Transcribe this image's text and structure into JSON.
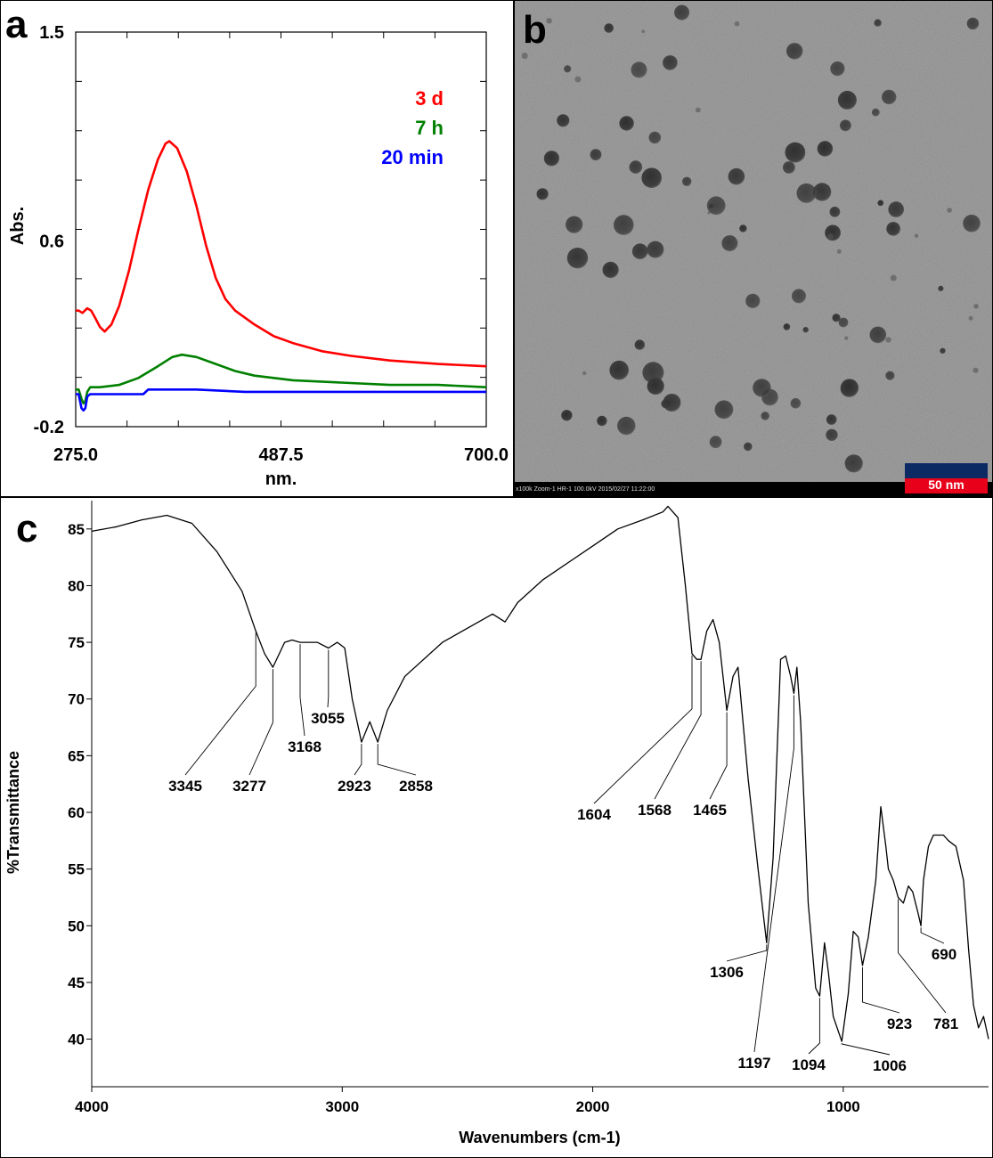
{
  "panels": {
    "a": {
      "letter": "a"
    },
    "b": {
      "letter": "b",
      "scale_bar": "50 nm",
      "info_text": "x100k Zoom-1 HR-1 100.0kV 2015/02/27 11:22:00"
    },
    "c": {
      "letter": "c"
    }
  },
  "chart_data": [
    {
      "panel": "a",
      "type": "line",
      "xlabel": "nm.",
      "ylabel": "Abs.",
      "xlim": [
        275.0,
        700.0
      ],
      "ylim": [
        -0.2,
        1.5
      ],
      "x_tick_labels": [
        "275.0",
        "487.5",
        "700.0"
      ],
      "y_tick_labels": [
        "-0.2",
        "0.6",
        "1.5"
      ],
      "legend_position": "top-right",
      "series": [
        {
          "name": "3 d",
          "color": "#ff0000",
          "points": [
            [
              275,
              0.3
            ],
            [
              278,
              0.3
            ],
            [
              282,
              0.29
            ],
            [
              287,
              0.31
            ],
            [
              291,
              0.3
            ],
            [
              295,
              0.27
            ],
            [
              300,
              0.23
            ],
            [
              305,
              0.21
            ],
            [
              312,
              0.24
            ],
            [
              320,
              0.32
            ],
            [
              330,
              0.47
            ],
            [
              340,
              0.65
            ],
            [
              350,
              0.82
            ],
            [
              360,
              0.95
            ],
            [
              368,
              1.02
            ],
            [
              372,
              1.03
            ],
            [
              380,
              1.0
            ],
            [
              390,
              0.9
            ],
            [
              400,
              0.75
            ],
            [
              410,
              0.58
            ],
            [
              420,
              0.44
            ],
            [
              430,
              0.35
            ],
            [
              440,
              0.3
            ],
            [
              460,
              0.24
            ],
            [
              480,
              0.19
            ],
            [
              500,
              0.16
            ],
            [
              530,
              0.125
            ],
            [
              560,
              0.105
            ],
            [
              600,
              0.085
            ],
            [
              650,
              0.07
            ],
            [
              700,
              0.06
            ]
          ]
        },
        {
          "name": "7 h",
          "color": "#008000",
          "points": [
            [
              275,
              -0.04
            ],
            [
              278,
              -0.04
            ],
            [
              281,
              -0.08
            ],
            [
              283,
              -0.1
            ],
            [
              285,
              -0.09
            ],
            [
              287,
              -0.05
            ],
            [
              290,
              -0.03
            ],
            [
              300,
              -0.03
            ],
            [
              320,
              -0.02
            ],
            [
              340,
              0.01
            ],
            [
              360,
              0.06
            ],
            [
              375,
              0.1
            ],
            [
              385,
              0.11
            ],
            [
              400,
              0.1
            ],
            [
              420,
              0.07
            ],
            [
              440,
              0.04
            ],
            [
              460,
              0.02
            ],
            [
              500,
              0.0
            ],
            [
              550,
              -0.01
            ],
            [
              600,
              -0.02
            ],
            [
              650,
              -0.02
            ],
            [
              700,
              -0.03
            ]
          ]
        },
        {
          "name": "20 min",
          "color": "#0000ff",
          "points": [
            [
              275,
              -0.06
            ],
            [
              278,
              -0.06
            ],
            [
              281,
              -0.12
            ],
            [
              283,
              -0.13
            ],
            [
              285,
              -0.12
            ],
            [
              287,
              -0.07
            ],
            [
              290,
              -0.06
            ],
            [
              320,
              -0.06
            ],
            [
              345,
              -0.06
            ],
            [
              350,
              -0.04
            ],
            [
              400,
              -0.04
            ],
            [
              450,
              -0.05
            ],
            [
              500,
              -0.05
            ],
            [
              600,
              -0.05
            ],
            [
              700,
              -0.05
            ]
          ]
        }
      ]
    },
    {
      "panel": "c",
      "type": "line",
      "xlabel": "Wavenumbers (cm-1)",
      "ylabel": "%Transmittance",
      "xlim": [
        4000,
        420
      ],
      "ylim": [
        35.8,
        87.5
      ],
      "x_tick_labels": [
        "4000",
        "3000",
        "2000",
        "1000"
      ],
      "x_ticks": [
        4000,
        3000,
        2000,
        1000
      ],
      "y_tick_labels": [
        "40",
        "45",
        "50",
        "55",
        "60",
        "65",
        "70",
        "75",
        "80",
        "85"
      ],
      "y_ticks": [
        40,
        45,
        50,
        55,
        60,
        65,
        70,
        75,
        80,
        85
      ],
      "series": [
        {
          "color": "#000000",
          "points": [
            [
              4000,
              84.8
            ],
            [
              3900,
              85.2
            ],
            [
              3800,
              85.8
            ],
            [
              3700,
              86.2
            ],
            [
              3600,
              85.5
            ],
            [
              3500,
              83.0
            ],
            [
              3400,
              79.5
            ],
            [
              3345,
              76.0
            ],
            [
              3310,
              74.0
            ],
            [
              3277,
              72.8
            ],
            [
              3230,
              75.0
            ],
            [
              3200,
              75.2
            ],
            [
              3168,
              75.0
            ],
            [
              3100,
              75.0
            ],
            [
              3055,
              74.5
            ],
            [
              3020,
              75.0
            ],
            [
              2990,
              74.5
            ],
            [
              2960,
              70.0
            ],
            [
              2923,
              66.2
            ],
            [
              2890,
              68.0
            ],
            [
              2858,
              66.2
            ],
            [
              2820,
              69.0
            ],
            [
              2750,
              72.0
            ],
            [
              2600,
              75.0
            ],
            [
              2400,
              77.5
            ],
            [
              2350,
              76.8
            ],
            [
              2300,
              78.5
            ],
            [
              2200,
              80.5
            ],
            [
              2100,
              82.0
            ],
            [
              2000,
              83.5
            ],
            [
              1900,
              85.0
            ],
            [
              1800,
              85.8
            ],
            [
              1720,
              86.5
            ],
            [
              1700,
              87.0
            ],
            [
              1660,
              86.0
            ],
            [
              1630,
              80.0
            ],
            [
              1604,
              74.0
            ],
            [
              1585,
              73.5
            ],
            [
              1568,
              73.5
            ],
            [
              1545,
              76.0
            ],
            [
              1520,
              77.0
            ],
            [
              1495,
              75.0
            ],
            [
              1465,
              69.0
            ],
            [
              1440,
              72.0
            ],
            [
              1420,
              72.8
            ],
            [
              1380,
              63.0
            ],
            [
              1340,
              55.0
            ],
            [
              1306,
              48.5
            ],
            [
              1280,
              56.0
            ],
            [
              1250,
              73.5
            ],
            [
              1230,
              73.8
            ],
            [
              1210,
              72.0
            ],
            [
              1197,
              70.5
            ],
            [
              1185,
              72.8
            ],
            [
              1170,
              68.0
            ],
            [
              1140,
              52.0
            ],
            [
              1110,
              44.5
            ],
            [
              1094,
              43.8
            ],
            [
              1075,
              48.5
            ],
            [
              1060,
              46.0
            ],
            [
              1040,
              42.0
            ],
            [
              1006,
              39.8
            ],
            [
              980,
              44.0
            ],
            [
              960,
              49.5
            ],
            [
              940,
              49.0
            ],
            [
              923,
              46.5
            ],
            [
              900,
              49.0
            ],
            [
              870,
              54.0
            ],
            [
              850,
              60.5
            ],
            [
              830,
              57.0
            ],
            [
              820,
              55.0
            ],
            [
              800,
              54.0
            ],
            [
              781,
              52.5
            ],
            [
              760,
              52.0
            ],
            [
              740,
              53.5
            ],
            [
              723,
              53.0
            ],
            [
              700,
              51.0
            ],
            [
              690,
              50.0
            ],
            [
              680,
              54.0
            ],
            [
              660,
              57.0
            ],
            [
              640,
              58.0
            ],
            [
              600,
              58.0
            ],
            [
              580,
              57.5
            ],
            [
              550,
              57.0
            ],
            [
              520,
              54.0
            ],
            [
              500,
              48.0
            ],
            [
              480,
              43.0
            ],
            [
              460,
              41.0
            ],
            [
              440,
              42.0
            ],
            [
              420,
              40.0
            ]
          ]
        }
      ],
      "annotations": [
        {
          "label": "3345",
          "x": 3345
        },
        {
          "label": "3277",
          "x": 3277
        },
        {
          "label": "3168",
          "x": 3168
        },
        {
          "label": "3055",
          "x": 3055
        },
        {
          "label": "2923",
          "x": 2923
        },
        {
          "label": "2858",
          "x": 2858
        },
        {
          "label": "1604",
          "x": 1604
        },
        {
          "label": "1568",
          "x": 1568
        },
        {
          "label": "1465",
          "x": 1465
        },
        {
          "label": "1306",
          "x": 1306
        },
        {
          "label": "1197",
          "x": 1197
        },
        {
          "label": "1094",
          "x": 1094
        },
        {
          "label": "1006",
          "x": 1006
        },
        {
          "label": "923",
          "x": 923
        },
        {
          "label": "781",
          "x": 781
        },
        {
          "label": "690",
          "x": 690
        }
      ]
    }
  ]
}
